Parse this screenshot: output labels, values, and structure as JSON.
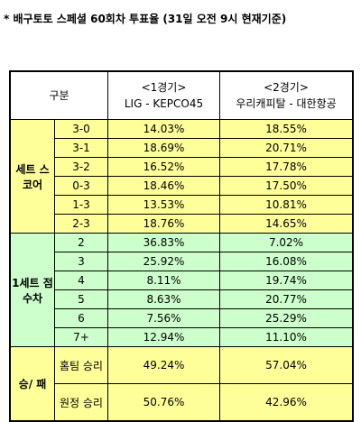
{
  "title": "* 배구토토 스페셜 60회차 투표율 (31일 오전 9시 현재기준)",
  "table": {
    "header": {
      "label": "구분",
      "game1": [
        "<1경기>",
        "LIG - KEPCO45"
      ],
      "game2": [
        "<2경기>",
        "우리캐피탈 - 대한항공"
      ]
    },
    "groups": [
      {
        "label": "세트 스코어",
        "color": "#ffff99",
        "rows": [
          [
            "3-0",
            "14.03%",
            "18.55%"
          ],
          [
            "3-1",
            "18.69%",
            "20.71%"
          ],
          [
            "3-2",
            "16.52%",
            "17.78%"
          ],
          [
            "0-3",
            "18.46%",
            "17.50%"
          ],
          [
            "1-3",
            "13.53%",
            "10.81%"
          ],
          [
            "2-3",
            "18.76%",
            "14.65%"
          ]
        ]
      },
      {
        "label": "1세트 점수차",
        "color": "#ccffcc",
        "rows": [
          [
            "2",
            "36.83%",
            "7.02%"
          ],
          [
            "3",
            "25.92%",
            "16.08%"
          ],
          [
            "4",
            "8.11%",
            "19.74%"
          ],
          [
            "5",
            "8.63%",
            "20.77%"
          ],
          [
            "6",
            "7.56%",
            "25.29%"
          ],
          [
            "7+",
            "12.94%",
            "11.10%"
          ]
        ]
      },
      {
        "label": "승/ 패",
        "color": "#ffff99",
        "rows": [
          [
            "홈팀 승리",
            "49.24%",
            "57.04%"
          ],
          [
            "원정 승리",
            "50.76%",
            "42.96%"
          ]
        ]
      }
    ]
  }
}
